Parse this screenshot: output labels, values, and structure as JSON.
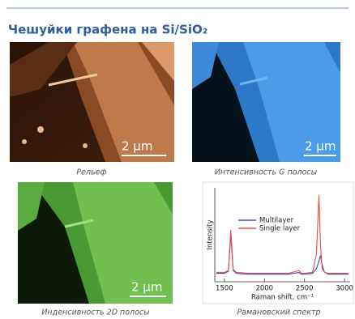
{
  "header": {
    "title": "Чешуйки графена на Si/SiO₂"
  },
  "panels": [
    {
      "caption": "Рельеф",
      "scale_bar": "2 µm"
    },
    {
      "caption": "Интенсивность G полосы",
      "scale_bar": "2 µm"
    },
    {
      "caption": "Инденсивность 2D полосы",
      "scale_bar": "2 µm"
    }
  ],
  "spectrum_caption": "Рамановский спектр",
  "chart_data": {
    "type": "line",
    "x_label": "Raman shift, cm⁻¹",
    "y_label": "Intensity",
    "x": [
      1400,
      1500,
      1550,
      1580,
      1610,
      1650,
      1800,
      2000,
      2300,
      2430,
      2460,
      2500,
      2600,
      2650,
      2680,
      2700,
      2720,
      2750,
      2800,
      2900,
      3000,
      3050
    ],
    "series": [
      {
        "name": "Multilayer",
        "color": "#3a4fb0",
        "values": [
          9,
          9,
          11,
          50,
          12,
          9,
          8,
          8,
          8,
          10,
          8,
          8,
          9,
          14,
          22,
          28,
          18,
          10,
          8,
          8,
          8,
          8
        ]
      },
      {
        "name": "Single layer",
        "color": "#e0504a",
        "values": [
          10,
          10,
          12,
          55,
          13,
          10,
          9,
          9,
          9,
          12,
          9,
          9,
          10,
          30,
          92,
          40,
          14,
          10,
          9,
          9,
          9,
          9
        ]
      }
    ],
    "xlim": [
      1380,
      3070
    ],
    "ylim": [
      0,
      100
    ],
    "xticks": [
      1500,
      2000,
      2500,
      3000
    ]
  }
}
